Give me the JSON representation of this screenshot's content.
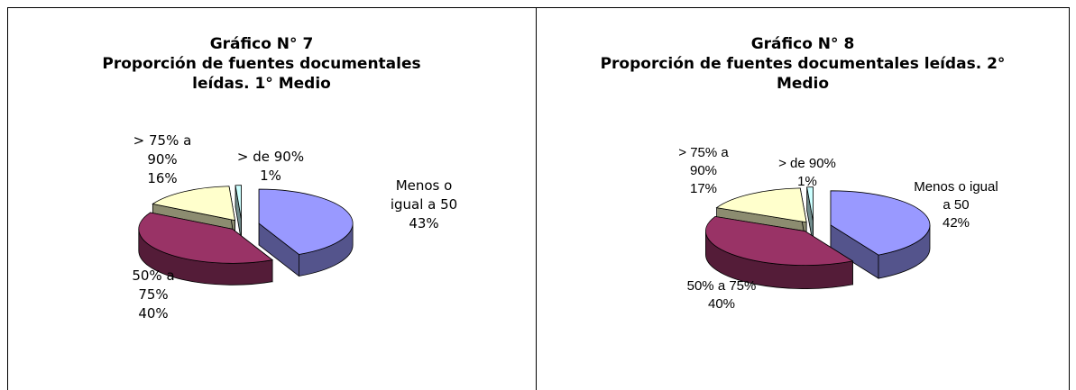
{
  "chart_data": [
    {
      "type": "pie",
      "title": "Gráfico N° 7",
      "subtitle": "Proporción de fuentes documentales leídas.  1° Medio",
      "categories": [
        "Menos o igual a 50",
        "50% a 75%",
        "> 75% a 90%",
        "> de 90%"
      ],
      "values": [
        43,
        40,
        16,
        1
      ],
      "value_labels": [
        "43%",
        "40%",
        "16%",
        "1%"
      ],
      "colors": [
        "#9999ff",
        "#993366",
        "#ffffcc",
        "#ccffff"
      ]
    },
    {
      "type": "pie",
      "title": "Gráfico N° 8",
      "subtitle": "Proporción de fuentes documentales leídas.  2° Medio",
      "categories": [
        "Menos o igual a 50",
        "50% a 75%",
        "> 75% a 90%",
        "> de 90%"
      ],
      "values": [
        42,
        40,
        17,
        1
      ],
      "value_labels": [
        "42%",
        "40%",
        "17%",
        "1%"
      ],
      "colors": [
        "#9999ff",
        "#993366",
        "#ffffcc",
        "#ccffff"
      ]
    }
  ]
}
